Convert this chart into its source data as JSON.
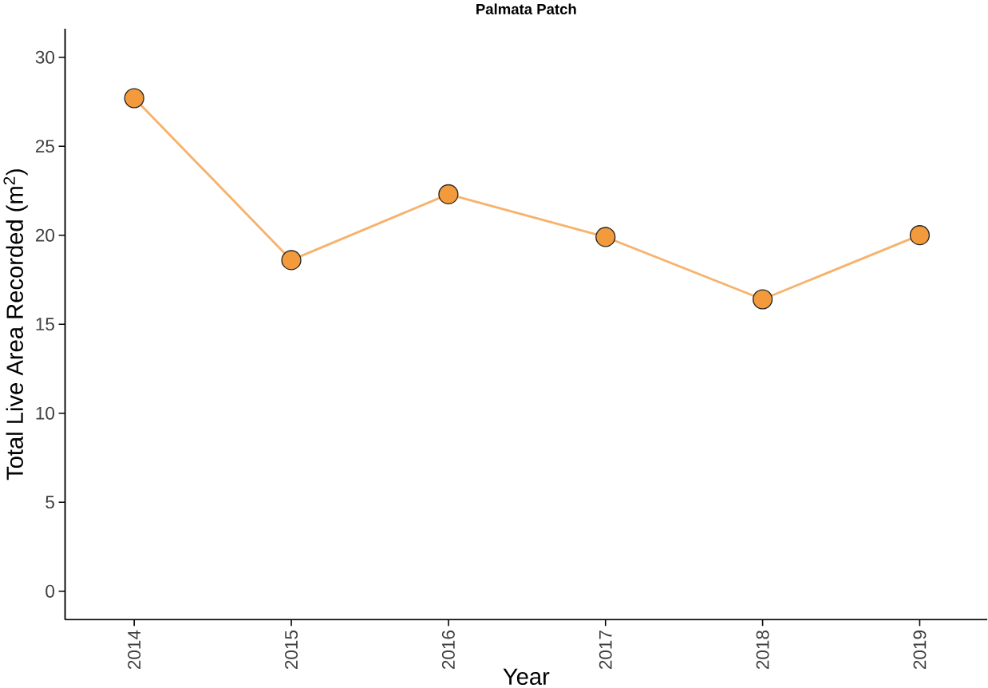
{
  "chart_data": {
    "type": "line",
    "title": "Palmata Patch",
    "xlabel": "Year",
    "ylabel": "Total Live Area Recorded (m$^{2}$)",
    "categories": [
      "2014",
      "2015",
      "2016",
      "2017",
      "2018",
      "2019"
    ],
    "series": [
      {
        "color": "#f39a3c",
        "values": [
          27.7,
          18.6,
          22.3,
          19.9,
          16.4,
          20.0
        ]
      }
    ],
    "ylim": [
      -1.6,
      31.6
    ],
    "yticks": [
      0,
      5,
      10,
      15,
      20,
      25,
      30
    ],
    "grid": false,
    "marker": "circle",
    "line_style": "solid"
  }
}
